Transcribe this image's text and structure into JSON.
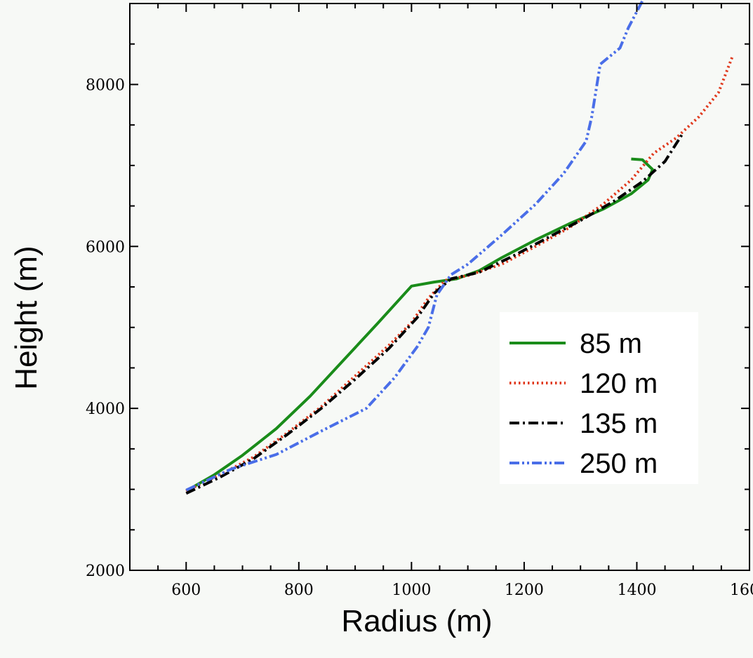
{
  "chart_data": {
    "type": "line",
    "xlabel": "Radius (m)",
    "ylabel": "Height (m)",
    "xlim": [
      500,
      1600
    ],
    "ylim": [
      2000,
      9000
    ],
    "x_ticks": [
      600,
      800,
      1000,
      1200,
      1400,
      1600
    ],
    "y_ticks": [
      2000,
      4000,
      6000,
      8000
    ],
    "x_ticks_minor_step": 50,
    "y_ticks_minor_step": 500,
    "grid": false,
    "legend_position": "lower-right",
    "series": [
      {
        "name": "85 m",
        "color": "#1a8c1a",
        "style": "solid",
        "points": [
          [
            600,
            2980
          ],
          [
            650,
            3180
          ],
          [
            700,
            3420
          ],
          [
            760,
            3750
          ],
          [
            820,
            4150
          ],
          [
            880,
            4600
          ],
          [
            940,
            5050
          ],
          [
            1000,
            5510
          ],
          [
            1040,
            5560
          ],
          [
            1080,
            5600
          ],
          [
            1120,
            5700
          ],
          [
            1160,
            5860
          ],
          [
            1220,
            6080
          ],
          [
            1280,
            6280
          ],
          [
            1340,
            6460
          ],
          [
            1390,
            6650
          ],
          [
            1420,
            6820
          ],
          [
            1428,
            6950
          ],
          [
            1410,
            7070
          ],
          [
            1390,
            7080
          ]
        ]
      },
      {
        "name": "120 m",
        "color": "#e03a1e",
        "style": "dotted",
        "points": [
          [
            600,
            2980
          ],
          [
            660,
            3180
          ],
          [
            720,
            3400
          ],
          [
            780,
            3700
          ],
          [
            840,
            4020
          ],
          [
            900,
            4400
          ],
          [
            960,
            4780
          ],
          [
            1000,
            5060
          ],
          [
            1030,
            5360
          ],
          [
            1060,
            5580
          ],
          [
            1100,
            5640
          ],
          [
            1160,
            5780
          ],
          [
            1220,
            6000
          ],
          [
            1280,
            6230
          ],
          [
            1340,
            6520
          ],
          [
            1390,
            6820
          ],
          [
            1430,
            7150
          ],
          [
            1470,
            7340
          ],
          [
            1510,
            7600
          ],
          [
            1545,
            7900
          ],
          [
            1570,
            8350
          ]
        ]
      },
      {
        "name": "135 m",
        "color": "#000000",
        "style": "dashdot",
        "points": [
          [
            600,
            2950
          ],
          [
            660,
            3150
          ],
          [
            720,
            3380
          ],
          [
            780,
            3680
          ],
          [
            840,
            4000
          ],
          [
            900,
            4360
          ],
          [
            960,
            4740
          ],
          [
            1010,
            5120
          ],
          [
            1040,
            5420
          ],
          [
            1070,
            5600
          ],
          [
            1120,
            5680
          ],
          [
            1180,
            5880
          ],
          [
            1240,
            6100
          ],
          [
            1300,
            6320
          ],
          [
            1360,
            6560
          ],
          [
            1410,
            6800
          ],
          [
            1450,
            7050
          ],
          [
            1480,
            7380
          ]
        ]
      },
      {
        "name": "250 m",
        "color": "#4a6ee8",
        "style": "dashdotdot",
        "points": [
          [
            600,
            2990
          ],
          [
            680,
            3250
          ],
          [
            760,
            3430
          ],
          [
            840,
            3720
          ],
          [
            920,
            4000
          ],
          [
            970,
            4380
          ],
          [
            1010,
            4760
          ],
          [
            1030,
            5000
          ],
          [
            1045,
            5400
          ],
          [
            1070,
            5650
          ],
          [
            1100,
            5780
          ],
          [
            1160,
            6140
          ],
          [
            1220,
            6520
          ],
          [
            1270,
            6900
          ],
          [
            1310,
            7300
          ],
          [
            1320,
            7600
          ],
          [
            1335,
            8250
          ],
          [
            1370,
            8450
          ],
          [
            1385,
            8700
          ],
          [
            1400,
            8900
          ],
          [
            1415,
            9100
          ]
        ]
      }
    ]
  }
}
